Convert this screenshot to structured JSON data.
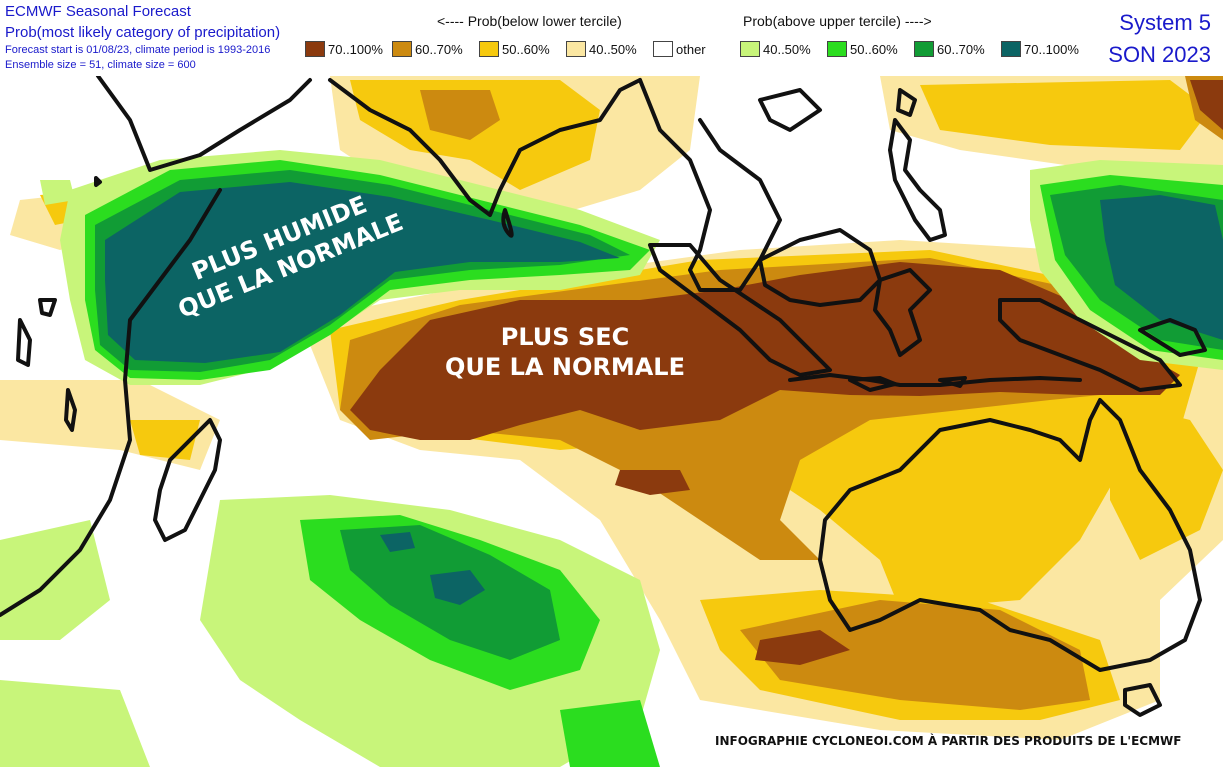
{
  "header": {
    "title": "ECMWF Seasonal Forecast",
    "subtitle": "Prob(most likely category of precipitation)",
    "forecast_info": "Forecast start is 01/08/23, climate period is 1993-2016",
    "ensemble_info": "Ensemble size = 51, climate size = 600",
    "system": "System 5",
    "season": "SON 2023"
  },
  "legend": {
    "below_heading": "<---- Prob(below lower tercile)",
    "above_heading": "Prob(above upper tercile) ---->",
    "items": [
      {
        "label": "70..100%",
        "color": "#8b3a0e"
      },
      {
        "label": "60..70%",
        "color": "#cc8a10"
      },
      {
        "label": "50..60%",
        "color": "#f6c90e"
      },
      {
        "label": "40..50%",
        "color": "#fbe7a2"
      },
      {
        "label": "other",
        "color": "#ffffff"
      },
      {
        "label": "40..50%",
        "color": "#c8f57a"
      },
      {
        "label": "50..60%",
        "color": "#2bdd1f"
      },
      {
        "label": "60..70%",
        "color": "#119c35"
      },
      {
        "label": "70..100%",
        "color": "#0c6464"
      }
    ]
  },
  "annotations": {
    "wet_line1": "PLUS HUMIDE",
    "wet_line2": "QUE LA NORMALE",
    "dry_line1": "PLUS SEC",
    "dry_line2": "QUE LA NORMALE"
  },
  "credit": "INFOGRAPHIE CYCLONEOI.COM À PARTIR DES PRODUITS DE L'ECMWF",
  "map_colors": {
    "coastline": "#111111",
    "label_text": "#ffffff"
  }
}
